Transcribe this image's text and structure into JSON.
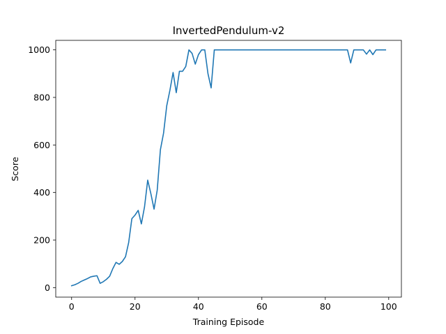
{
  "chart_data": {
    "type": "line",
    "title": "InvertedPendulum-v2",
    "xlabel": "Training Episode",
    "ylabel": "Score",
    "xlim": [
      -5,
      104
    ],
    "ylim": [
      -40,
      1040
    ],
    "xticks": [
      0,
      20,
      40,
      60,
      80,
      100
    ],
    "yticks": [
      0,
      200,
      400,
      600,
      800,
      1000
    ],
    "grid": false,
    "line_color": "#1f77b4",
    "series": [
      {
        "x": [
          0,
          1,
          2,
          3,
          4,
          5,
          6,
          7,
          8,
          9,
          10,
          11,
          12,
          13,
          14,
          15,
          16,
          17,
          18,
          19,
          20,
          21,
          22,
          23,
          24,
          25,
          26,
          27,
          28,
          29,
          30,
          31,
          32,
          33,
          34,
          35,
          36,
          37,
          38,
          39,
          40,
          41,
          42,
          43,
          44,
          45,
          46,
          47,
          48,
          49,
          50,
          51,
          52,
          53,
          54,
          55,
          56,
          57,
          58,
          59,
          60,
          61,
          62,
          63,
          64,
          65,
          66,
          67,
          68,
          69,
          70,
          71,
          72,
          73,
          74,
          75,
          76,
          77,
          78,
          79,
          80,
          81,
          82,
          83,
          84,
          85,
          86,
          87,
          88,
          89,
          90,
          91,
          92,
          93,
          94,
          95,
          96,
          97,
          98,
          99
        ],
        "values": [
          8,
          12,
          18,
          26,
          32,
          38,
          45,
          48,
          50,
          18,
          25,
          35,
          48,
          80,
          106,
          98,
          110,
          130,
          190,
          290,
          305,
          325,
          268,
          340,
          452,
          395,
          330,
          410,
          580,
          650,
          765,
          830,
          905,
          820,
          910,
          910,
          930,
          1000,
          985,
          940,
          980,
          1000,
          1000,
          900,
          840,
          1000,
          1000,
          1000,
          1000,
          1000,
          1000,
          1000,
          1000,
          1000,
          1000,
          1000,
          1000,
          1000,
          1000,
          1000,
          1000,
          1000,
          1000,
          1000,
          1000,
          1000,
          1000,
          1000,
          1000,
          1000,
          1000,
          1000,
          1000,
          1000,
          1000,
          1000,
          1000,
          1000,
          1000,
          1000,
          1000,
          1000,
          1000,
          1000,
          1000,
          1000,
          1000,
          1000,
          945,
          1000,
          1000,
          1000,
          1000,
          982,
          1000,
          980,
          1000,
          1000,
          1000,
          1000
        ]
      }
    ]
  }
}
